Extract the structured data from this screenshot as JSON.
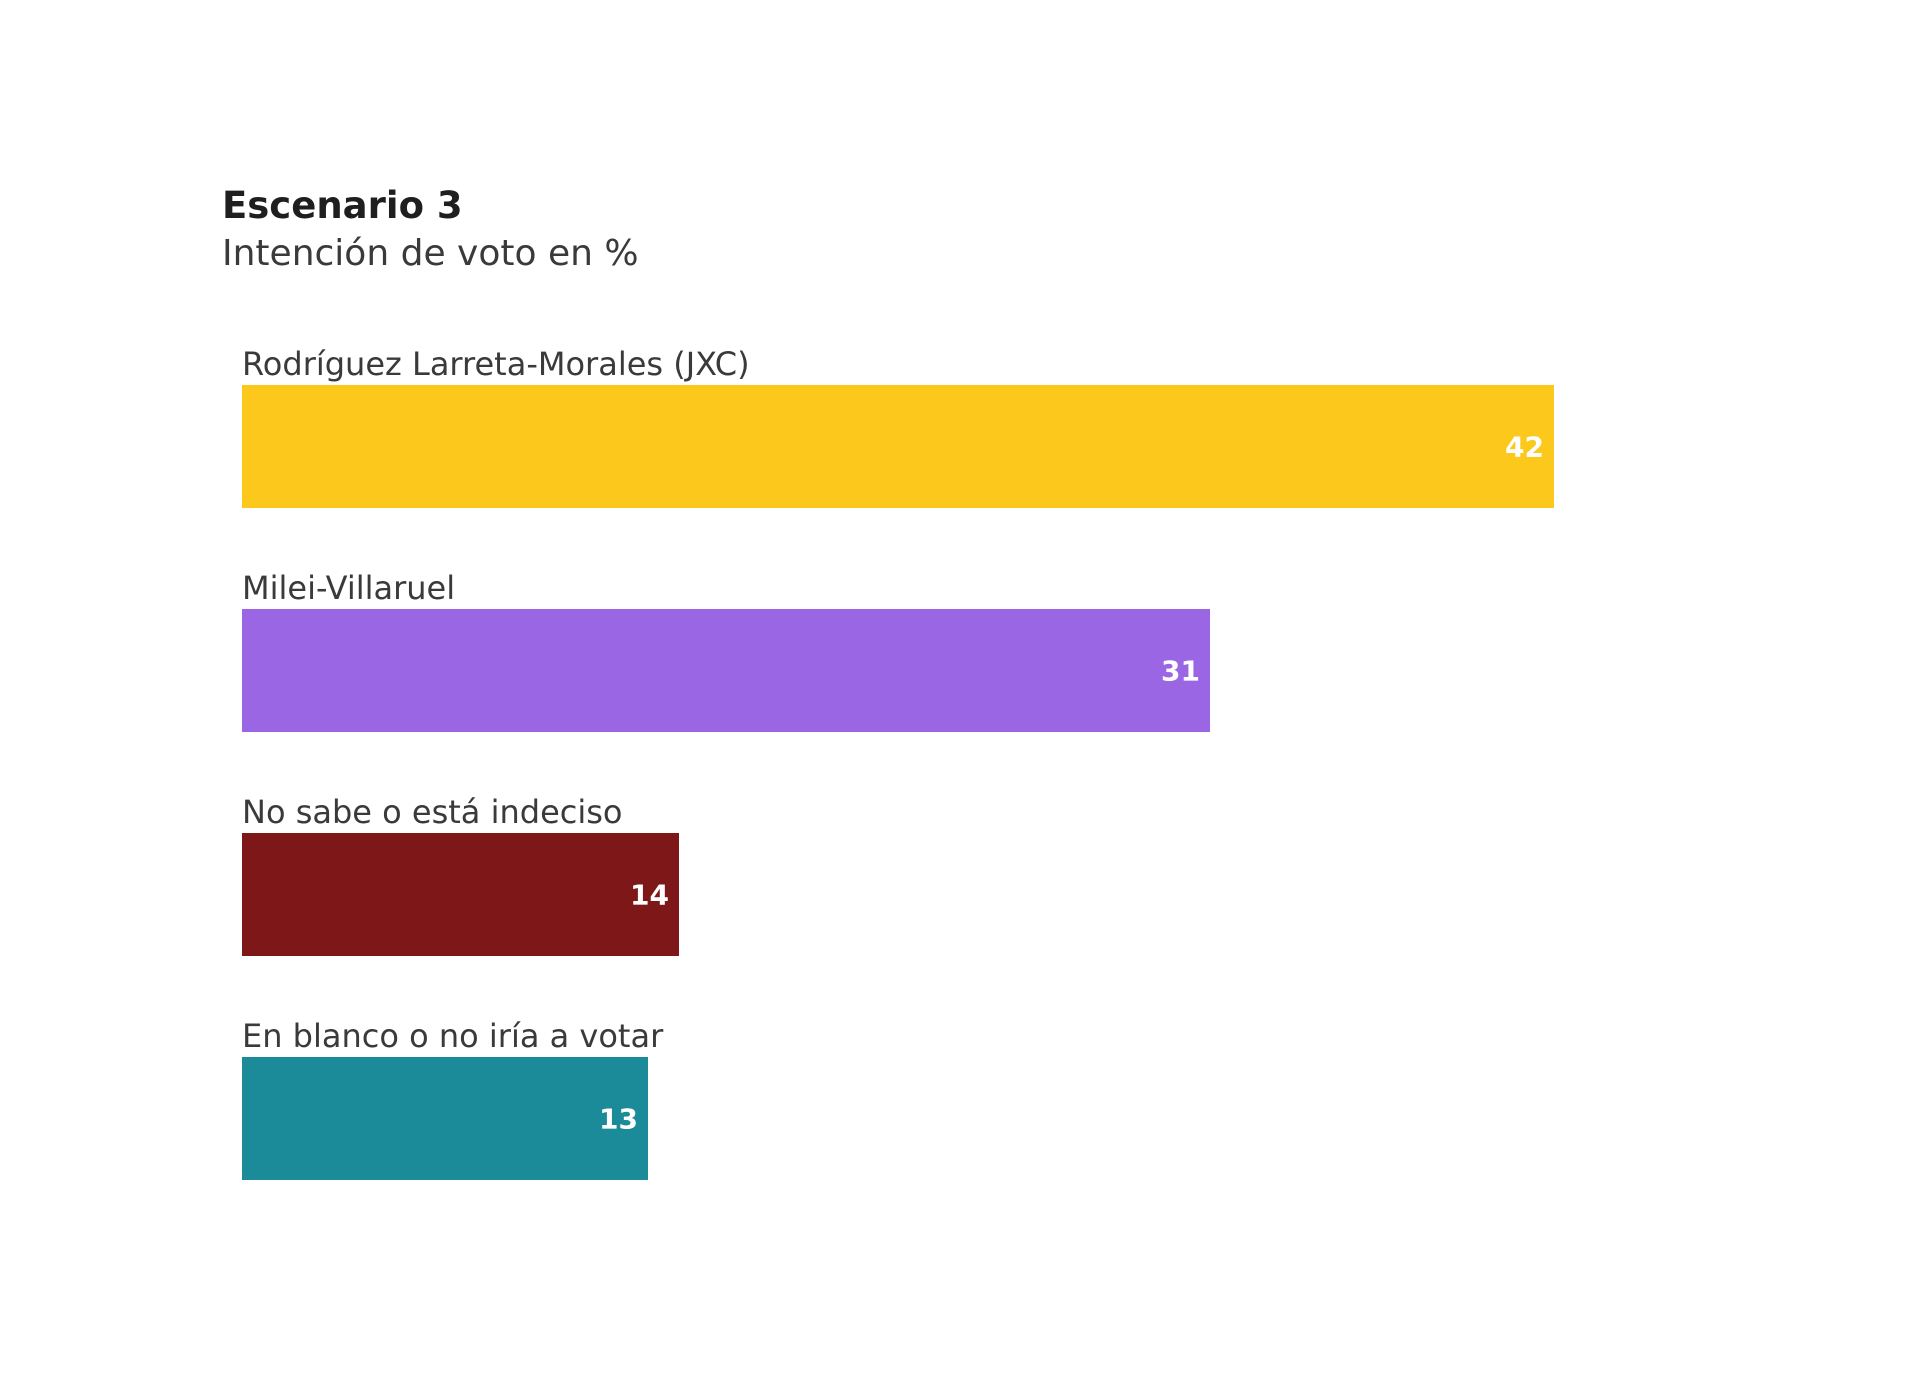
{
  "chart_data": {
    "type": "bar",
    "orientation": "horizontal",
    "title": "Escenario 3",
    "subtitle": "Intención de voto en %",
    "categories": [
      "Rodríguez Larreta-Morales (JXC)",
      "Milei-Villaruel",
      "No sabe o está indeciso",
      "En blanco o no iría a votar"
    ],
    "values": [
      42,
      31,
      14,
      13
    ],
    "colors": [
      "#FCC81C",
      "#9B66E4",
      "#7E1818",
      "#1B8A99"
    ],
    "xlim": [
      0,
      42
    ],
    "grid": false,
    "legend": "none"
  }
}
